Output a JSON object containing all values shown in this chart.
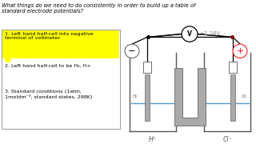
{
  "bg_color": "#ffffff",
  "title_text": "What things do we need to do consistently in order to build up a table of\nstandard electrode potentials?",
  "points": [
    "1. Left hand half-cell into negative\nterminal of voltmeter",
    "2. Left hand half-cell to be H₂, H+",
    "3. Standard conditions (1atm,\n1moldm⁻³, standard states, 298K)"
  ],
  "highlight_color": "#ffff00",
  "voltage_text": "+1.38V",
  "left_label": "H⁺",
  "right_label": "Cl⁻",
  "left_gas": "H₂",
  "right_gas": "Cl₂",
  "diagram_bg": "#f5f5f5"
}
